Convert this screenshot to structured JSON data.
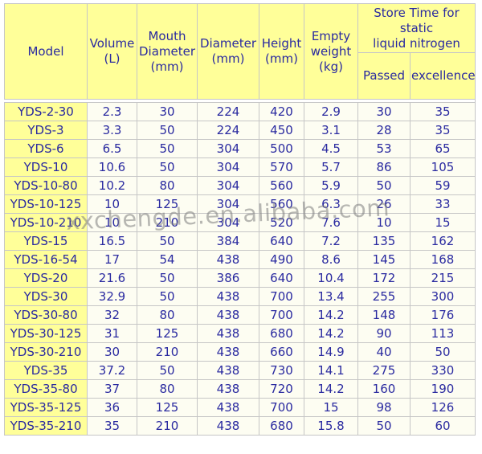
{
  "table": {
    "header": {
      "model": "Model",
      "volume": "Volume\n(L)",
      "mouth": "Mouth\nDiameter\n(mm)",
      "diameter": "Diameter\n(mm)",
      "height": "Height\n(mm)",
      "weight": "Empty\nweight\n(kg)",
      "store_time": "Store Time for\nstatic\nliquid nitrogen",
      "passed": "Passed",
      "excellence": "excellence"
    },
    "row_keys": [
      "model",
      "volume",
      "mouth",
      "diameter",
      "height",
      "weight",
      "passed",
      "excellence"
    ],
    "rows": [
      {
        "model": "YDS-2-30",
        "volume": "2.3",
        "mouth": "30",
        "diameter": "224",
        "height": "420",
        "weight": "2.9",
        "passed": "30",
        "excellence": "35"
      },
      {
        "model": "YDS-3",
        "volume": "3.3",
        "mouth": "50",
        "diameter": "224",
        "height": "450",
        "weight": "3.1",
        "passed": "28",
        "excellence": "35"
      },
      {
        "model": "YDS-6",
        "volume": "6.5",
        "mouth": "50",
        "diameter": "304",
        "height": "500",
        "weight": "4.5",
        "passed": "53",
        "excellence": "65"
      },
      {
        "model": "YDS-10",
        "volume": "10.6",
        "mouth": "50",
        "diameter": "304",
        "height": "570",
        "weight": "5.7",
        "passed": "86",
        "excellence": "105"
      },
      {
        "model": "YDS-10-80",
        "volume": "10.2",
        "mouth": "80",
        "diameter": "304",
        "height": "560",
        "weight": "5.9",
        "passed": "50",
        "excellence": "59"
      },
      {
        "model": "YDS-10-125",
        "volume": "10",
        "mouth": "125",
        "diameter": "304",
        "height": "560",
        "weight": "6.3",
        "passed": "26",
        "excellence": "33"
      },
      {
        "model": "YDS-10-210",
        "volume": "10",
        "mouth": "210",
        "diameter": "304",
        "height": "520",
        "weight": "7.6",
        "passed": "10",
        "excellence": "15"
      },
      {
        "model": "YDS-15",
        "volume": "16.5",
        "mouth": "50",
        "diameter": "384",
        "height": "640",
        "weight": "7.2",
        "passed": "135",
        "excellence": "162"
      },
      {
        "model": "YDS-16-54",
        "volume": "17",
        "mouth": "54",
        "diameter": "438",
        "height": "490",
        "weight": "8.6",
        "passed": "145",
        "excellence": "168"
      },
      {
        "model": "YDS-20",
        "volume": "21.6",
        "mouth": "50",
        "diameter": "386",
        "height": "640",
        "weight": "10.4",
        "passed": "172",
        "excellence": "215"
      },
      {
        "model": "YDS-30",
        "volume": "32.9",
        "mouth": "50",
        "diameter": "438",
        "height": "700",
        "weight": "13.4",
        "passed": "255",
        "excellence": "300"
      },
      {
        "model": "YDS-30-80",
        "volume": "32",
        "mouth": "80",
        "diameter": "438",
        "height": "700",
        "weight": "14.2",
        "passed": "148",
        "excellence": "176"
      },
      {
        "model": "YDS-30-125",
        "volume": "31",
        "mouth": "125",
        "diameter": "438",
        "height": "680",
        "weight": "14.2",
        "passed": "90",
        "excellence": "113"
      },
      {
        "model": "YDS-30-210",
        "volume": "30",
        "mouth": "210",
        "diameter": "438",
        "height": "660",
        "weight": "14.9",
        "passed": "40",
        "excellence": "50"
      },
      {
        "model": "YDS-35",
        "volume": "37.2",
        "mouth": "50",
        "diameter": "438",
        "height": "730",
        "weight": "14.1",
        "passed": "275",
        "excellence": "330"
      },
      {
        "model": "YDS-35-80",
        "volume": "37",
        "mouth": "80",
        "diameter": "438",
        "height": "720",
        "weight": "14.2",
        "passed": "160",
        "excellence": "190"
      },
      {
        "model": "YDS-35-125",
        "volume": "36",
        "mouth": "125",
        "diameter": "438",
        "height": "700",
        "weight": "15",
        "passed": "98",
        "excellence": "126"
      },
      {
        "model": "YDS-35-210",
        "volume": "35",
        "mouth": "210",
        "diameter": "438",
        "height": "680",
        "weight": "15.8",
        "passed": "50",
        "excellence": "60"
      }
    ]
  },
  "watermark": {
    "text": "xxchengde.en.alibaba.com"
  },
  "colors": {
    "header_bg": "#FFFF99",
    "cell_bg": "#FDFDF2",
    "text": "#2A2AA0",
    "border": "#C6C6C6",
    "watermark": "#7D7D7D"
  }
}
